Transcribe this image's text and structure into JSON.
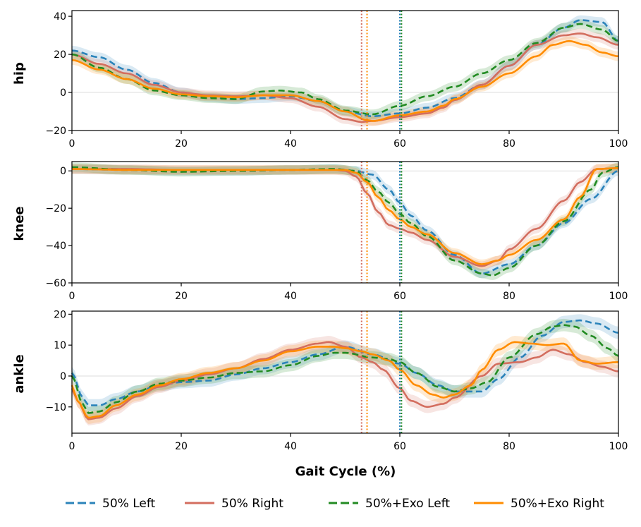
{
  "chart_data": {
    "type": "line",
    "xlabel": "Gait Cycle (%)",
    "xlim": [
      0,
      100
    ],
    "xticks": [
      "0",
      "20",
      "40",
      "60",
      "80",
      "100"
    ],
    "colors": {
      "50% Left": "#2b83ba",
      "50% Right": "#d36e5f",
      "50%+Exo Left": "#228b22",
      "50%+Exo Right": "#ff8c00"
    },
    "legend": [
      {
        "name": "50% Left",
        "style": "dashed"
      },
      {
        "name": "50% Right",
        "style": "solid"
      },
      {
        "name": "50%+Exo Left",
        "style": "dashed"
      },
      {
        "name": "50%+Exo Right",
        "style": "solid"
      }
    ],
    "vlines": [
      {
        "x": 53,
        "series": "50% Right"
      },
      {
        "x": 54,
        "series": "50%+Exo Right"
      },
      {
        "x": 60,
        "series": "50% Left"
      },
      {
        "x": 60.3,
        "series": "50%+Exo Left"
      }
    ],
    "panels": [
      {
        "ylabel": "hip",
        "ylim": [
          -20,
          43
        ],
        "yticks": [
          "40",
          "20",
          "0",
          "−20"
        ],
        "ytick_values": [
          40,
          20,
          0,
          -20
        ],
        "band": 2.5,
        "series": [
          {
            "name": "50% Left",
            "x": [
              0,
              5,
              10,
              15,
              20,
              25,
              30,
              35,
              40,
              45,
              50,
              55,
              60,
              65,
              70,
              75,
              80,
              85,
              90,
              93,
              97,
              100
            ],
            "values": [
              22,
              18.5,
              12,
              5,
              0,
              -2.5,
              -3.5,
              -3,
              -2,
              -4.5,
              -10,
              -12.5,
              -11,
              -8,
              -3,
              4,
              14,
              25,
              34,
              38,
              37,
              27
            ]
          },
          {
            "name": "50% Right",
            "x": [
              0,
              5,
              10,
              15,
              20,
              25,
              30,
              35,
              40,
              45,
              50,
              53,
              55,
              60,
              65,
              68,
              70,
              75,
              80,
              85,
              90,
              93,
              96,
              100
            ],
            "values": [
              20,
              15,
              10,
              4,
              0,
              -1.5,
              -2,
              -1.5,
              -3,
              -7.5,
              -14,
              -15.5,
              -15,
              -13,
              -11,
              -8,
              -4,
              4,
              14,
              25,
              30,
              31,
              29,
              25
            ]
          },
          {
            "name": "50%+Exo Left",
            "x": [
              0,
              5,
              10,
              15,
              20,
              25,
              30,
              35,
              38,
              42,
              45,
              50,
              55,
              60,
              65,
              70,
              75,
              80,
              85,
              90,
              93,
              97,
              100
            ],
            "values": [
              20,
              13,
              7,
              1,
              -1.5,
              -3,
              -3.5,
              0.5,
              1,
              0,
              -3.5,
              -9.5,
              -11.5,
              -7,
              -2,
              3,
              10,
              17,
              26,
              34,
              36,
              33,
              27
            ]
          },
          {
            "name": "50%+Exo Right",
            "x": [
              0,
              5,
              10,
              15,
              20,
              25,
              30,
              35,
              40,
              45,
              50,
              54,
              55,
              60,
              65,
              68,
              70,
              75,
              80,
              85,
              88,
              91,
              94,
              97,
              100
            ],
            "values": [
              17,
              12,
              7,
              2,
              -1,
              -2,
              -2.5,
              -1.5,
              -1.5,
              -4.5,
              -10,
              -14.5,
              -15,
              -12,
              -10,
              -7,
              -3.5,
              3,
              10,
              19,
              25,
              27,
              25,
              21,
              19
            ]
          }
        ]
      },
      {
        "ylabel": "knee",
        "ylim": [
          -60,
          5
        ],
        "yticks": [
          "0",
          "−20",
          "−40",
          "−60"
        ],
        "ytick_values": [
          0,
          -20,
          -40,
          -60
        ],
        "band": 2.5,
        "series": [
          {
            "name": "50% Left",
            "x": [
              0,
              10,
              20,
              30,
              40,
              48,
              52,
              55,
              58,
              60,
              62,
              65,
              70,
              75,
              80,
              85,
              90,
              95,
              100
            ],
            "values": [
              1,
              0.5,
              0,
              0,
              0.5,
              1,
              0,
              -2,
              -10,
              -17,
              -24,
              -32,
              -45,
              -55,
              -50,
              -40,
              -28,
              -15,
              0
            ]
          },
          {
            "name": "50% Right",
            "x": [
              0,
              10,
              20,
              30,
              40,
              48,
              50,
              52,
              54,
              56,
              58,
              60,
              62,
              65,
              70,
              75,
              78,
              80,
              85,
              90,
              93,
              96,
              100
            ],
            "values": [
              1,
              1,
              0.5,
              0.5,
              0.5,
              0.5,
              0,
              -3,
              -12,
              -22,
              -29,
              -31,
              -33,
              -37,
              -46,
              -51,
              -48,
              -42,
              -31,
              -16,
              -6,
              1,
              1.5
            ]
          },
          {
            "name": "50%+Exo Left",
            "x": [
              0,
              10,
              20,
              30,
              40,
              48,
              52,
              54,
              56,
              58,
              60,
              62,
              65,
              70,
              75,
              77,
              80,
              85,
              90,
              95,
              97,
              100
            ],
            "values": [
              2,
              0.5,
              -0.5,
              0,
              0.5,
              1,
              0,
              -5,
              -11,
              -17,
              -23,
              -28,
              -35,
              -48,
              -55,
              -56,
              -52,
              -40,
              -27,
              -10,
              -1,
              2
            ]
          },
          {
            "name": "50%+Exo Right",
            "x": [
              0,
              10,
              20,
              30,
              40,
              48,
              50,
              52,
              54,
              56,
              58,
              60,
              62,
              65,
              70,
              75,
              78,
              80,
              85,
              90,
              93,
              96,
              100
            ],
            "values": [
              1,
              0.5,
              0.5,
              0.5,
              0.5,
              0.5,
              0.5,
              -1,
              -6,
              -14,
              -21,
              -26,
              -30,
              -34,
              -44,
              -50,
              -48,
              -45,
              -37,
              -26,
              -14,
              1,
              1.5
            ]
          }
        ]
      },
      {
        "ylabel": "ankle",
        "ylim": [
          -18.5,
          21
        ],
        "yticks": [
          "20",
          "10",
          "0",
          "−10"
        ],
        "ytick_values": [
          20,
          10,
          0,
          -10
        ],
        "band": 2.0,
        "series": [
          {
            "name": "50% Left",
            "x": [
              0,
              2,
              3,
              5,
              8,
              12,
              16,
              20,
              25,
              30,
              35,
              40,
              45,
              50,
              55,
              60,
              63,
              67,
              70,
              75,
              78,
              82,
              86,
              90,
              93,
              96,
              100
            ],
            "values": [
              1,
              -7,
              -9.5,
              -9.5,
              -7.5,
              -5,
              -3,
              -2,
              -1.5,
              0.5,
              2.5,
              4.5,
              7,
              9.5,
              7,
              4,
              1,
              -3,
              -5,
              -5,
              -1,
              6,
              13,
              17.5,
              18,
              17,
              14
            ]
          },
          {
            "name": "50% Right",
            "x": [
              0,
              1,
              3,
              5,
              8,
              12,
              16,
              20,
              25,
              30,
              35,
              40,
              45,
              47,
              50,
              53,
              55,
              57,
              60,
              62,
              65,
              68,
              70,
              75,
              78,
              82,
              85,
              88,
              91,
              94,
              97,
              100
            ],
            "values": [
              -4,
              -8,
              -14,
              -13.5,
              -10.5,
              -6.5,
              -3.5,
              -1.5,
              0.5,
              2.5,
              5.5,
              8.5,
              10.5,
              11,
              9.5,
              6,
              4.5,
              2,
              -4,
              -8,
              -10,
              -9,
              -7,
              0,
              4,
              4.5,
              6,
              8.5,
              7,
              4.5,
              3,
              1.5
            ]
          },
          {
            "name": "50%+Exo Left",
            "x": [
              0,
              2,
              3,
              5,
              8,
              12,
              16,
              20,
              25,
              30,
              35,
              40,
              45,
              48,
              50,
              55,
              58,
              60,
              63,
              67,
              70,
              73,
              76,
              80,
              85,
              88,
              90,
              92,
              95,
              98,
              100
            ],
            "values": [
              0,
              -9,
              -12,
              -11.5,
              -8.5,
              -5,
              -2.5,
              -1.5,
              -0.5,
              1,
              1.5,
              3.5,
              6.5,
              7.5,
              7.5,
              6,
              5.5,
              4.5,
              1,
              -3.5,
              -5,
              -4,
              -2,
              6,
              13.5,
              16,
              16.5,
              16,
              13,
              9,
              6.5
            ]
          },
          {
            "name": "50%+Exo Right",
            "x": [
              0,
              1,
              3,
              5,
              8,
              12,
              16,
              20,
              25,
              30,
              35,
              40,
              45,
              48,
              50,
              53,
              55,
              58,
              60,
              63,
              66,
              68,
              70,
              73,
              75,
              78,
              81,
              84,
              87,
              90,
              93,
              96,
              100
            ],
            "values": [
              -3,
              -8,
              -13.5,
              -13,
              -9.5,
              -6,
              -3,
              -1,
              1,
              2.5,
              5,
              8,
              9.5,
              9.5,
              9,
              8,
              7,
              5,
              2,
              -3,
              -6,
              -7,
              -6,
              -3,
              2,
              8.5,
              11,
              10.5,
              10,
              10.5,
              5,
              4,
              4.5
            ]
          }
        ]
      }
    ]
  }
}
